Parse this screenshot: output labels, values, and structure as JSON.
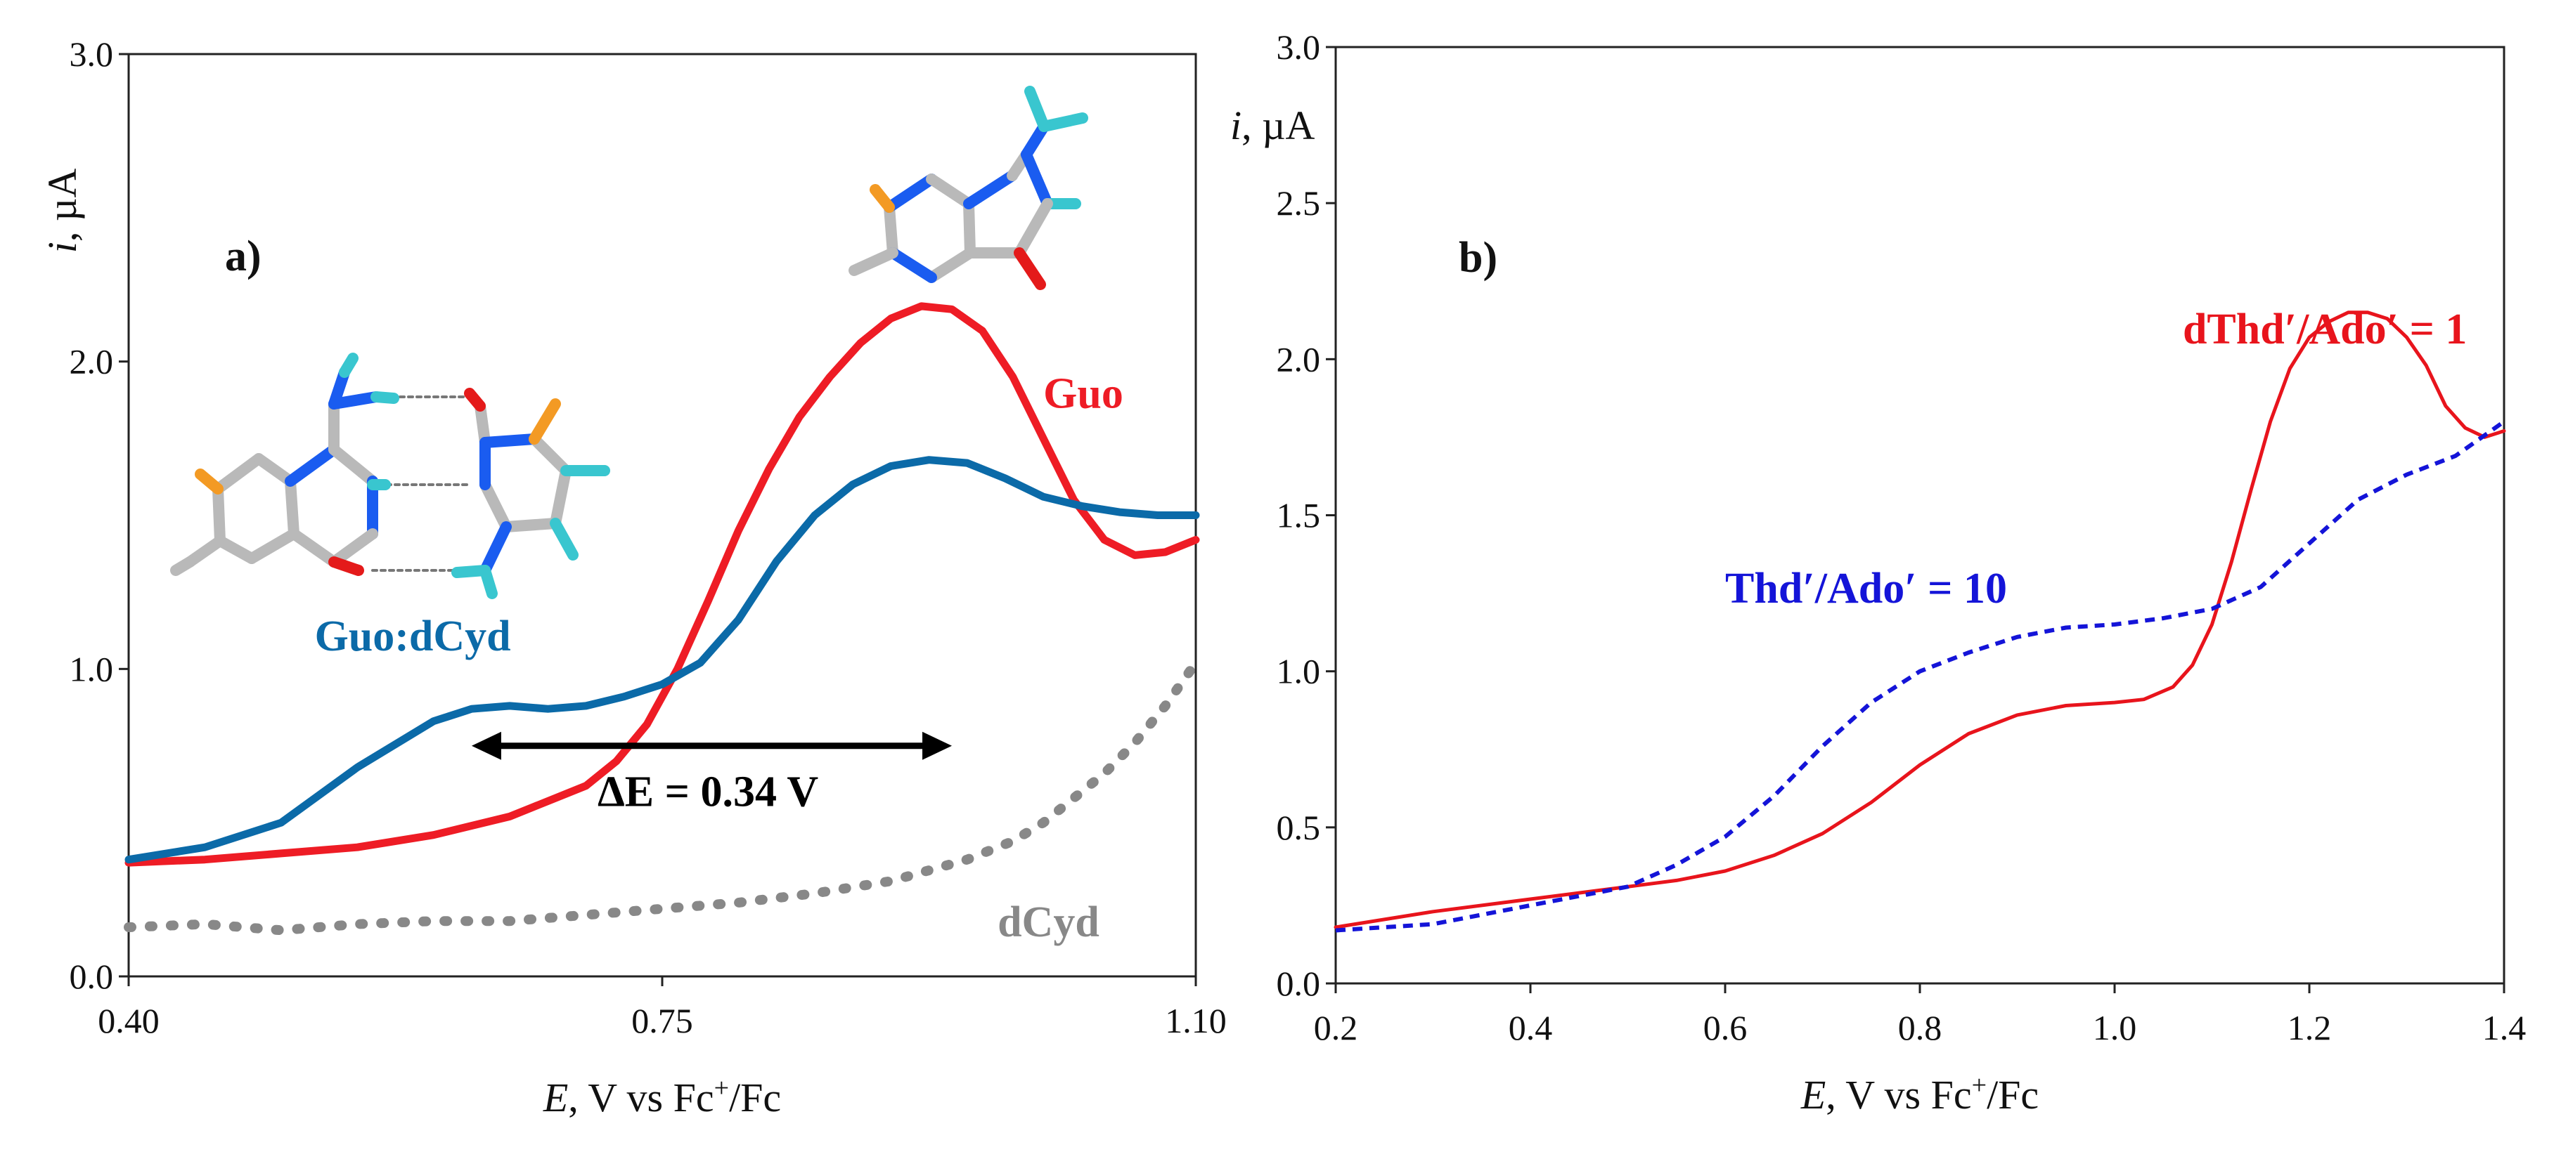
{
  "colors": {
    "guo": "#ee1c25",
    "guo_dcyd": "#0b6aa8",
    "dcyd": "#888888",
    "red": "#e8141c",
    "blue": "#1414d8",
    "atom_c": "#b9b9b9",
    "atom_n": "#1a5cf0",
    "atom_o": "#e41a1a",
    "atom_h_n": "#39c6cf",
    "atom_h_c": "#f39a24"
  },
  "chart_data": [
    {
      "type": "line",
      "panel_label": "a)",
      "xlabel_italic": "E",
      "xlabel_rest": ", V vs Fc",
      "xlabel_sup": "+",
      "xlabel_end": "/Fc",
      "ylabel_italic": "i",
      "ylabel_rest": ", µA",
      "xlim": [
        0.4,
        1.1
      ],
      "ylim": [
        0.0,
        3.0
      ],
      "xticks": [
        0.4,
        0.75,
        1.1
      ],
      "xtick_labels": [
        "0.40",
        "0.75",
        "1.10"
      ],
      "yticks": [
        0.0,
        1.0,
        2.0,
        3.0
      ],
      "ytick_labels": [
        "0.0",
        "1.0",
        "2.0",
        "3.0"
      ],
      "annotation": {
        "text": "ΔE = 0.34 V",
        "arrow_from": 0.625,
        "arrow_to": 0.94,
        "arrow_y": 0.75,
        "text_x": 0.78,
        "text_y": 0.6
      },
      "series": [
        {
          "name": "Guo",
          "style": "solid-thick",
          "label_x": 1.0,
          "label_y": 1.85,
          "x": [
            0.4,
            0.45,
            0.5,
            0.55,
            0.6,
            0.65,
            0.7,
            0.72,
            0.74,
            0.76,
            0.78,
            0.8,
            0.82,
            0.84,
            0.86,
            0.88,
            0.9,
            0.92,
            0.94,
            0.96,
            0.98,
            1.0,
            1.02,
            1.04,
            1.06,
            1.08,
            1.1
          ],
          "y": [
            0.37,
            0.38,
            0.4,
            0.42,
            0.46,
            0.52,
            0.62,
            0.7,
            0.82,
            1.0,
            1.22,
            1.45,
            1.65,
            1.82,
            1.95,
            2.06,
            2.14,
            2.18,
            2.17,
            2.1,
            1.95,
            1.75,
            1.55,
            1.42,
            1.37,
            1.38,
            1.42
          ]
        },
        {
          "name": "Guo:dCyd",
          "style": "solid-thick",
          "label_x": 0.522,
          "label_y": 1.06,
          "x": [
            0.4,
            0.45,
            0.5,
            0.55,
            0.6,
            0.625,
            0.65,
            0.675,
            0.7,
            0.725,
            0.75,
            0.775,
            0.8,
            0.825,
            0.85,
            0.875,
            0.9,
            0.925,
            0.95,
            0.975,
            1.0,
            1.025,
            1.05,
            1.075,
            1.1
          ],
          "y": [
            0.38,
            0.42,
            0.5,
            0.68,
            0.83,
            0.87,
            0.88,
            0.87,
            0.88,
            0.91,
            0.95,
            1.02,
            1.16,
            1.35,
            1.5,
            1.6,
            1.66,
            1.68,
            1.67,
            1.62,
            1.56,
            1.53,
            1.51,
            1.5,
            1.5
          ]
        },
        {
          "name": "dCyd",
          "style": "dotted-thick",
          "label_x": 0.97,
          "label_y": 0.13,
          "x": [
            0.4,
            0.45,
            0.5,
            0.55,
            0.6,
            0.65,
            0.7,
            0.75,
            0.8,
            0.85,
            0.9,
            0.95,
            0.98,
            1.0,
            1.02,
            1.04,
            1.06,
            1.08,
            1.1
          ],
          "y": [
            0.16,
            0.17,
            0.15,
            0.17,
            0.18,
            0.18,
            0.2,
            0.22,
            0.24,
            0.27,
            0.31,
            0.38,
            0.44,
            0.5,
            0.58,
            0.66,
            0.76,
            0.88,
            1.02
          ]
        }
      ]
    },
    {
      "type": "line",
      "panel_label": "b)",
      "xlabel_italic": "E",
      "xlabel_rest": ", V vs Fc",
      "xlabel_sup": "+",
      "xlabel_end": "/Fc",
      "ylabel_italic": "i",
      "ylabel_rest": ", µA",
      "xlim": [
        0.2,
        1.4
      ],
      "ylim": [
        0.0,
        3.0
      ],
      "xticks": [
        0.2,
        0.4,
        0.6,
        0.8,
        1.0,
        1.2,
        1.4
      ],
      "xtick_labels": [
        "0.2",
        "0.4",
        "0.6",
        "0.8",
        "1.0",
        "1.2",
        "1.4"
      ],
      "yticks": [
        0.0,
        0.5,
        1.0,
        1.5,
        2.0,
        2.5,
        3.0
      ],
      "ytick_labels": [
        "0.0",
        "0.5",
        "1.0",
        "1.5",
        "2.0",
        "2.5",
        "3.0"
      ],
      "series": [
        {
          "name": "dThd′/Ado′ = 1",
          "style": "solid-thin",
          "label_x": 1.07,
          "label_y": 2.05,
          "x": [
            0.2,
            0.3,
            0.4,
            0.5,
            0.55,
            0.6,
            0.65,
            0.7,
            0.75,
            0.8,
            0.85,
            0.9,
            0.95,
            1.0,
            1.03,
            1.06,
            1.08,
            1.1,
            1.12,
            1.14,
            1.16,
            1.18,
            1.2,
            1.22,
            1.24,
            1.26,
            1.28,
            1.3,
            1.32,
            1.34,
            1.36,
            1.38,
            1.4
          ],
          "y": [
            0.18,
            0.23,
            0.27,
            0.31,
            0.33,
            0.36,
            0.41,
            0.48,
            0.58,
            0.7,
            0.8,
            0.86,
            0.89,
            0.9,
            0.91,
            0.95,
            1.02,
            1.15,
            1.35,
            1.58,
            1.8,
            1.97,
            2.07,
            2.12,
            2.15,
            2.15,
            2.13,
            2.07,
            1.98,
            1.85,
            1.78,
            1.75,
            1.77
          ]
        },
        {
          "name": "Thd′/Ado′ = 10",
          "style": "dashed-thin",
          "label_x": 0.6,
          "label_y": 1.22,
          "x": [
            0.2,
            0.3,
            0.4,
            0.5,
            0.55,
            0.6,
            0.65,
            0.7,
            0.75,
            0.8,
            0.85,
            0.9,
            0.95,
            1.0,
            1.05,
            1.1,
            1.15,
            1.2,
            1.25,
            1.3,
            1.35,
            1.4
          ],
          "y": [
            0.17,
            0.19,
            0.25,
            0.31,
            0.38,
            0.47,
            0.6,
            0.76,
            0.9,
            1.0,
            1.06,
            1.11,
            1.14,
            1.15,
            1.17,
            1.2,
            1.27,
            1.41,
            1.55,
            1.63,
            1.69,
            1.8
          ]
        }
      ]
    }
  ]
}
